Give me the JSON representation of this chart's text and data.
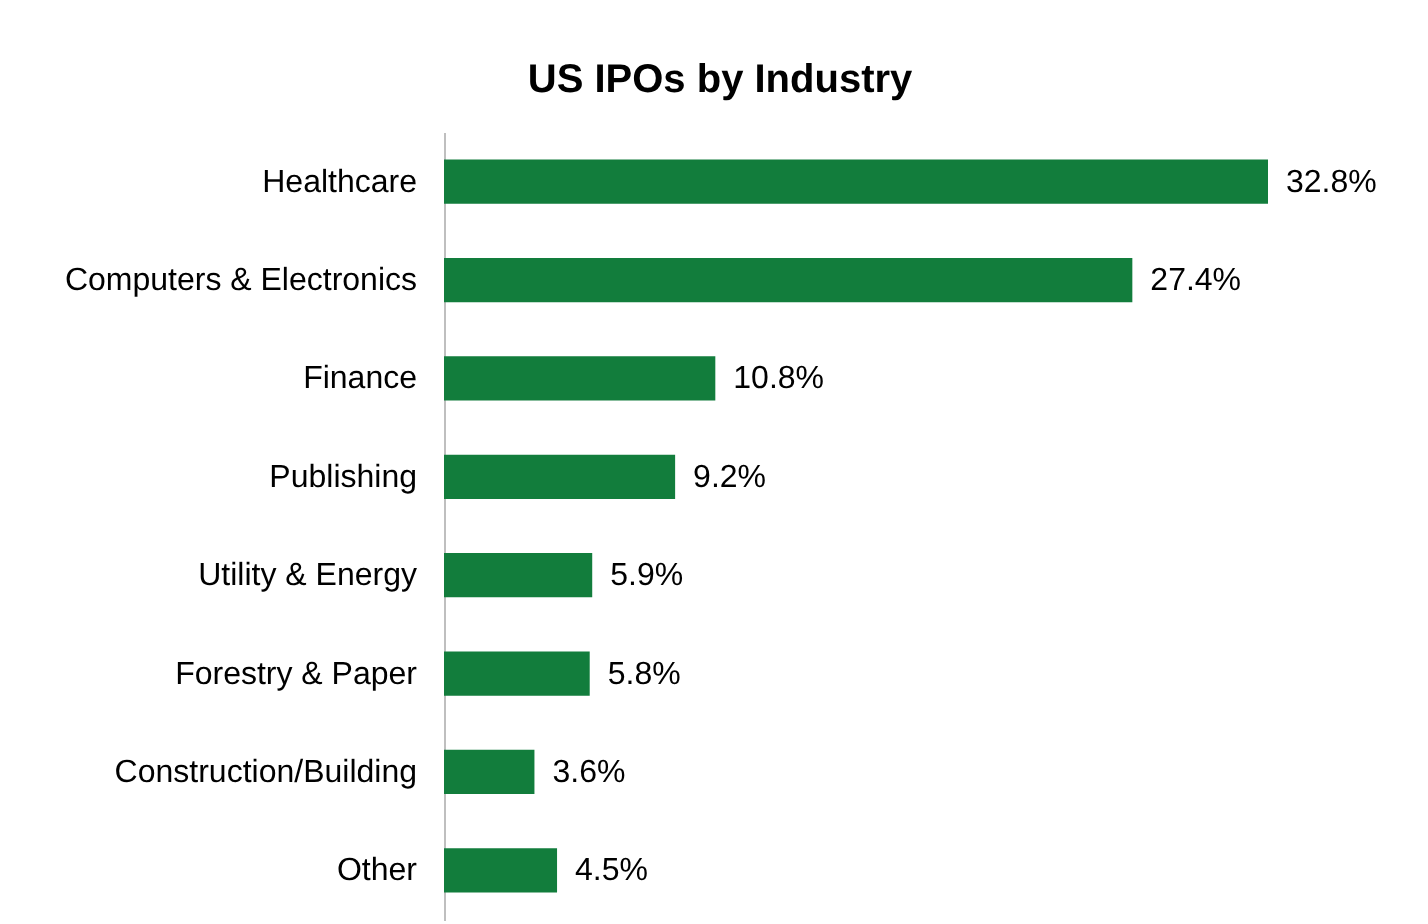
{
  "chart_data": {
    "type": "bar",
    "orientation": "horizontal",
    "title": "US IPOs by Industry",
    "categories": [
      "Healthcare",
      "Computers & Electronics",
      "Finance",
      "Publishing",
      "Utility & Energy",
      "Forestry & Paper",
      "Construction/Building",
      "Other"
    ],
    "values": [
      32.8,
      27.4,
      10.8,
      9.2,
      5.9,
      5.8,
      3.6,
      4.5
    ],
    "value_labels": [
      "32.8%",
      "27.4%",
      "10.8%",
      "9.2%",
      "5.9%",
      "5.8%",
      "3.6%",
      "4.5%"
    ],
    "color": "#127d3c"
  }
}
